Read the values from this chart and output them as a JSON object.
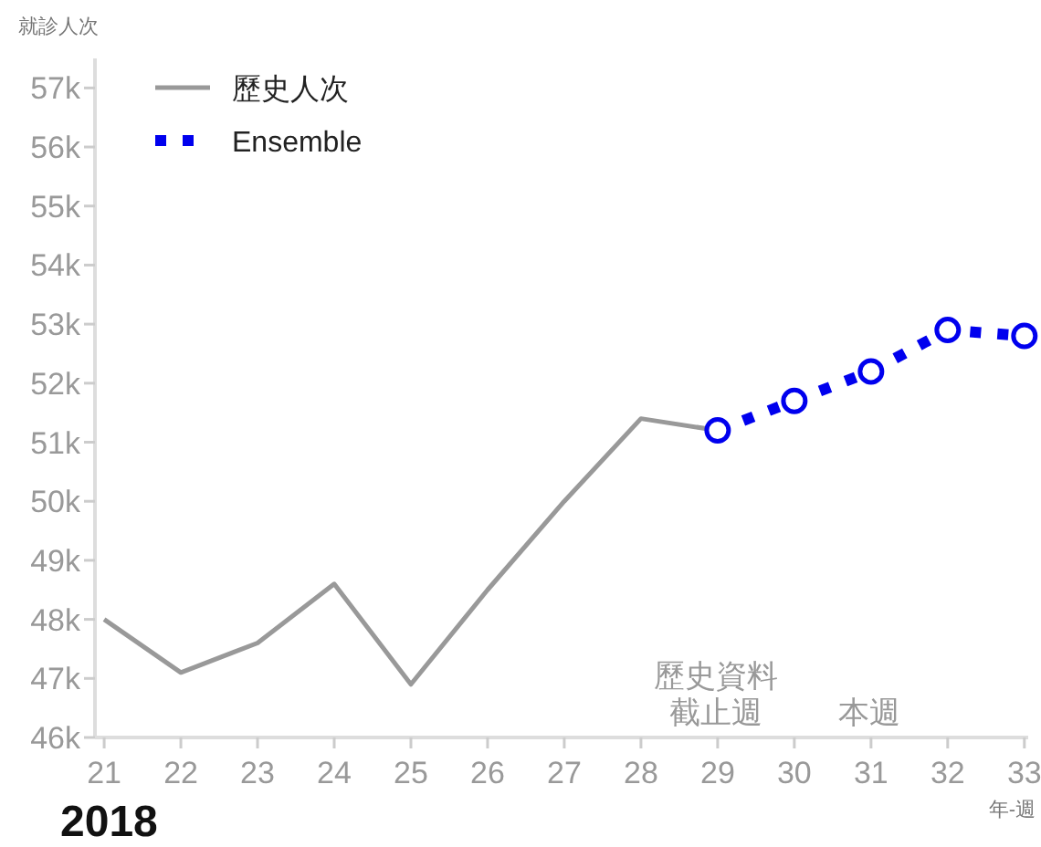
{
  "chart_data": {
    "type": "line",
    "ylabel": "就診人次",
    "xlabel": "年-週",
    "xlim": [
      20.88,
      33.05
    ],
    "xticks": [
      21,
      22,
      23,
      24,
      25,
      26,
      27,
      28,
      29,
      30,
      31,
      32,
      33
    ],
    "ylim": [
      46000,
      57500
    ],
    "yticks": [
      {
        "value": 46000,
        "label": "46k"
      },
      {
        "value": 47000,
        "label": "47k"
      },
      {
        "value": 48000,
        "label": "48k"
      },
      {
        "value": 49000,
        "label": "49k"
      },
      {
        "value": 50000,
        "label": "50k"
      },
      {
        "value": 51000,
        "label": "51k"
      },
      {
        "value": 52000,
        "label": "52k"
      },
      {
        "value": 53000,
        "label": "53k"
      },
      {
        "value": 54000,
        "label": "54k"
      },
      {
        "value": 55000,
        "label": "55k"
      },
      {
        "value": 56000,
        "label": "56k"
      },
      {
        "value": 57000,
        "label": "57k"
      }
    ],
    "series": [
      {
        "name": "歷史人次",
        "color": "#999999",
        "line_style": "solid",
        "marker": "none",
        "x": [
          21,
          22,
          23,
          24,
          25,
          26,
          27,
          28,
          29
        ],
        "values": [
          48000,
          47100,
          47600,
          48600,
          46900,
          48500,
          50000,
          51400,
          51200
        ]
      },
      {
        "name": "Ensemble",
        "color": "#0000ee",
        "line_style": "dotted",
        "marker": "circle",
        "x": [
          29,
          30,
          31,
          32,
          33
        ],
        "values": [
          51200,
          51700,
          52200,
          52900,
          52800
        ]
      }
    ],
    "annotations": [
      "歷史資料截止週",
      "本週",
      "2018"
    ],
    "legend": "top left",
    "grid": false
  }
}
